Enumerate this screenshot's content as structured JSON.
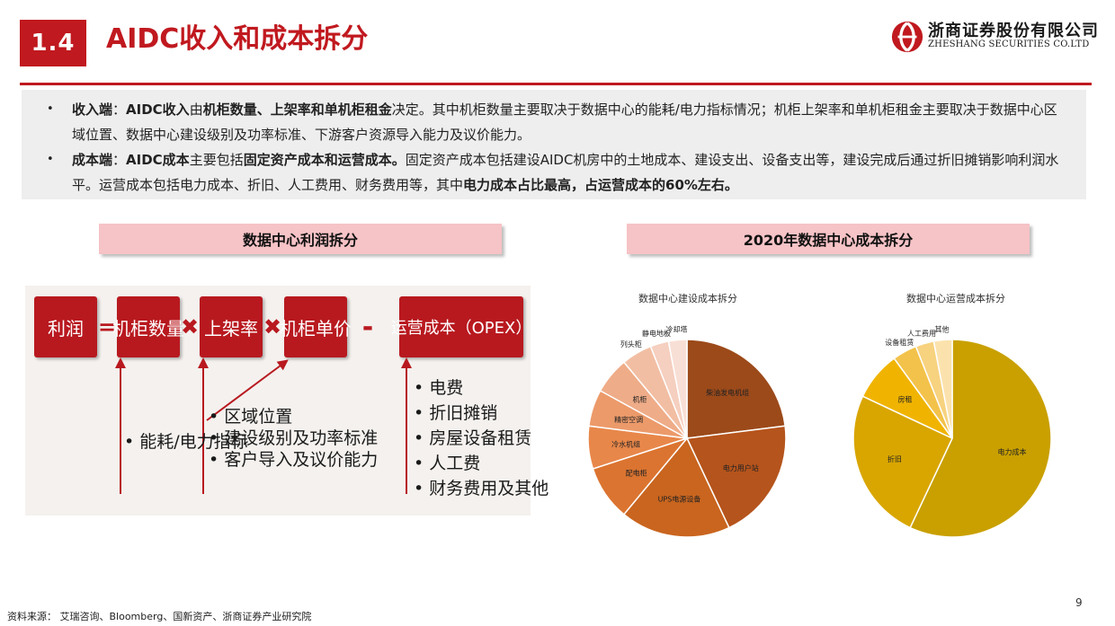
{
  "header": {
    "section_number": "1.4",
    "title": "AIDC收入和成本拆分",
    "logo_cn": "浙商证券股份有限公司",
    "logo_en": "ZHESHANG SECURITIES CO.LTD"
  },
  "summary": {
    "revenue": {
      "label": "收入端",
      "sep": "：",
      "subject": "AIDC收入",
      "p1": "由",
      "factors": "机柜数量、上架率和单机柜租金",
      "p2": "决定。其中机柜数量主要取决于数据中心的能耗/电力指标情况；机柜上架率和单机柜租金主要取决于数据中心区域位置、数据中心建设级别及功率标准、下游客户资源导入能力及议价能力。"
    },
    "cost": {
      "label": "成本端",
      "sep": "：",
      "subject": "AIDC成本",
      "p1": "主要包括",
      "types": "固定资产成本和运营成本。",
      "p2": "固定资产成本包括建设AIDC机房中的土地成本、建设支出、设备支出等，建设完成后通过折旧摊销影响利润水平。运营成本包括电力成本、折旧、人工费用、财务费用等，其中",
      "highlight": "电力成本占比最高，占运营成本的60%左右。"
    }
  },
  "left_panel": {
    "title": "数据中心利润拆分",
    "formula": {
      "profit": "利润",
      "equals": "=",
      "cabinets": "机柜数量",
      "times": "✖",
      "rack_rate": "上架率",
      "unit_price": "机柜单价",
      "minus": "-",
      "opex": "运营成本（OPEX）"
    },
    "driver_power": "能耗/电力指标",
    "drivers_rate": [
      "区域位置",
      "建设级别及功率标准",
      "客户导入及议价能力"
    ],
    "opex_items": [
      "电费",
      "折旧摊销",
      "房屋设备租赁",
      "人工费",
      "财务费用及其他"
    ]
  },
  "right_panel": {
    "title": "2020年数据中心成本拆分"
  },
  "chart_data": [
    {
      "type": "pie",
      "title": "数据中心建设成本拆分",
      "slices": [
        {
          "label": "柴油发电机组",
          "value": 23,
          "color": "#9c4a1a"
        },
        {
          "label": "电力用户站",
          "value": 20,
          "color": "#b5541c"
        },
        {
          "label": "UPS电源设备",
          "value": 18,
          "color": "#c9651f"
        },
        {
          "label": "配电柜",
          "value": 9,
          "color": "#db7430"
        },
        {
          "label": "冷水机组",
          "value": 7,
          "color": "#e8874a"
        },
        {
          "label": "精密空调",
          "value": 6,
          "color": "#ec9a6a"
        },
        {
          "label": "机柜",
          "value": 6,
          "color": "#efac88"
        },
        {
          "label": "列头柜",
          "value": 5,
          "color": "#f2bea3"
        },
        {
          "label": "静电地板",
          "value": 3,
          "color": "#f5cfbf"
        },
        {
          "label": "冷却塔",
          "value": 3,
          "color": "#f8dfd5"
        }
      ]
    },
    {
      "type": "pie",
      "title": "数据中心运营成本拆分",
      "slices": [
        {
          "label": "电力成本",
          "value": 57,
          "color": "#c9a000"
        },
        {
          "label": "折旧",
          "value": 25,
          "color": "#d9a600"
        },
        {
          "label": "房租",
          "value": 8,
          "color": "#f0b400"
        },
        {
          "label": "设备租赁",
          "value": 4,
          "color": "#f3c24a"
        },
        {
          "label": "人工费用",
          "value": 3,
          "color": "#f7d27f"
        },
        {
          "label": "其他",
          "value": 3,
          "color": "#fbe2ad"
        }
      ]
    }
  ],
  "footer": {
    "source": "资料来源：  艾瑞咨询、Bloomberg、国新资产、浙商证券产业研究院",
    "page": "9"
  }
}
